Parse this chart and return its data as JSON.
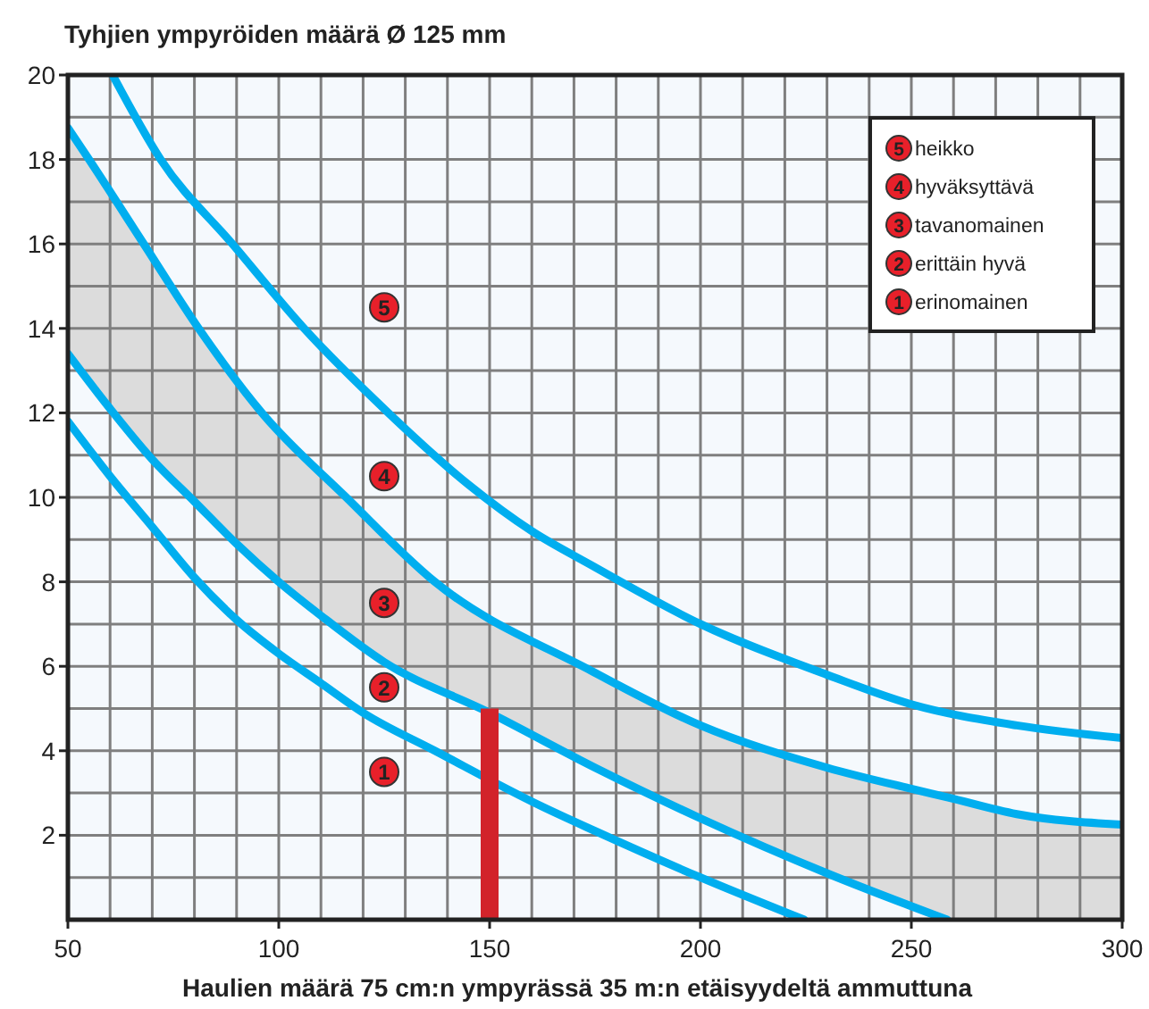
{
  "chart_data": {
    "type": "line",
    "ylabel": "Tyhjien ympyröiden määrä Ø 125 mm",
    "xlabel": "Haulien määrä 75 cm:n ympyrässä 35 m:n etäisyydeltä ammuttuna",
    "xlim": [
      50,
      300
    ],
    "ylim": [
      0,
      20
    ],
    "xticks": [
      50,
      {
        "value": 60,
        "label": null
      },
      {
        "value": 70,
        "label": null
      },
      {
        "value": 80,
        "label": null
      },
      {
        "value": 90,
        "label": null
      },
      100,
      {
        "value": 110,
        "label": null
      },
      {
        "value": 120,
        "label": null
      },
      {
        "value": 130,
        "label": null
      },
      {
        "value": 140,
        "label": null
      },
      150,
      {
        "value": 160,
        "label": null
      },
      {
        "value": 170,
        "label": null
      },
      {
        "value": 180,
        "label": null
      },
      {
        "value": 190,
        "label": null
      },
      200,
      {
        "value": 210,
        "label": null
      },
      {
        "value": 220,
        "label": null
      },
      {
        "value": 230,
        "label": null
      },
      {
        "value": 240,
        "label": null
      },
      250,
      {
        "value": 260,
        "label": null
      },
      {
        "value": 270,
        "label": null
      },
      {
        "value": 280,
        "label": null
      },
      {
        "value": 290,
        "label": null
      },
      300
    ],
    "yticks": [
      {
        "value": 0,
        "label": null
      },
      {
        "value": 1,
        "label": null
      },
      2,
      {
        "value": 3,
        "label": null
      },
      4,
      {
        "value": 5,
        "label": null
      },
      6,
      {
        "value": 7,
        "label": null
      },
      8,
      {
        "value": 9,
        "label": null
      },
      10,
      {
        "value": 11,
        "label": null
      },
      12,
      {
        "value": 13,
        "label": null
      },
      14,
      {
        "value": 15,
        "label": null
      },
      16,
      {
        "value": 17,
        "label": null
      },
      18,
      {
        "value": 19,
        "label": null
      },
      20
    ],
    "grid": true,
    "legend": "top right",
    "line_style": "solid",
    "annotations": [
      "5",
      "4",
      "3",
      "2",
      "1"
    ],
    "series": [
      {
        "color": "#00aeef",
        "x": [
          60.6,
          72,
          89,
          106,
          126,
          145,
          160,
          174,
          200,
          230,
          250,
          275,
          300
        ],
        "values": [
          20,
          18,
          16,
          14,
          12,
          10.3,
          9.2,
          8.4,
          7.0,
          5.8,
          5.1,
          4.6,
          4.3
        ]
      },
      {
        "color": "#00aeef",
        "x": [
          50,
          55,
          68,
          81,
          96,
          116,
          137,
          174,
          200,
          230,
          250,
          258.5,
          275,
          300
        ],
        "values": [
          18.75,
          18,
          16,
          14,
          12,
          10,
          8,
          5.9,
          4.6,
          3.6,
          3.1,
          2.9,
          2.5,
          2.25
        ],
        "lower": [
          13.4,
          12.75,
          11.14,
          9.8,
          8.36,
          6.76,
          5.52,
          3.65,
          2.4,
          1.1,
          0.33,
          0,
          0,
          0
        ],
        "upper": [
          18.75,
          18,
          16,
          14,
          12,
          10,
          8,
          5.9,
          4.6,
          3.6,
          3.1,
          2.9,
          2.5,
          2.25
        ]
      },
      {
        "color": "#00aeef",
        "x": [
          50,
          60,
          70,
          80,
          90,
          100,
          110,
          125,
          150,
          175,
          200,
          230,
          258.5
        ],
        "values": [
          13.4,
          12.1,
          10.9,
          9.9,
          8.9,
          8.0,
          7.2,
          6.1,
          4.9,
          3.6,
          2.4,
          1.1,
          0
        ]
      },
      {
        "color": "#00aeef",
        "x": [
          50,
          60,
          70,
          80,
          90,
          100,
          110,
          120,
          137,
          162,
          175,
          200,
          224.6
        ],
        "values": [
          11.8,
          10.5,
          9.3,
          8.1,
          7.1,
          6.3,
          5.6,
          4.9,
          4.0,
          2.7,
          2.1,
          1.0,
          0
        ]
      },
      {
        "type": "bar",
        "color": "#d2232a",
        "x": [
          150
        ],
        "values": [
          5
        ]
      },
      {
        "type": "scatter",
        "marker": "circle",
        "name": "heikko",
        "color": "#e8202a",
        "x": [
          125
        ],
        "values": [
          14.5
        ]
      },
      {
        "type": "scatter",
        "marker": "circle",
        "name": "hyväksyttävä",
        "color": "#e8202a",
        "x": [
          125
        ],
        "values": [
          10.5
        ]
      },
      {
        "type": "scatter",
        "marker": "circle",
        "name": "tavanomainen",
        "color": "#e8202a",
        "x": [
          125
        ],
        "values": [
          7.5
        ]
      },
      {
        "type": "scatter",
        "marker": "circle",
        "name": "erittäin hyvä",
        "color": "#e8202a",
        "x": [
          125
        ],
        "values": [
          5.5
        ]
      },
      {
        "type": "scatter",
        "marker": "circle",
        "name": "erinomainen",
        "color": "#e8202a",
        "x": [
          125
        ],
        "values": [
          3.5
        ]
      }
    ]
  }
}
